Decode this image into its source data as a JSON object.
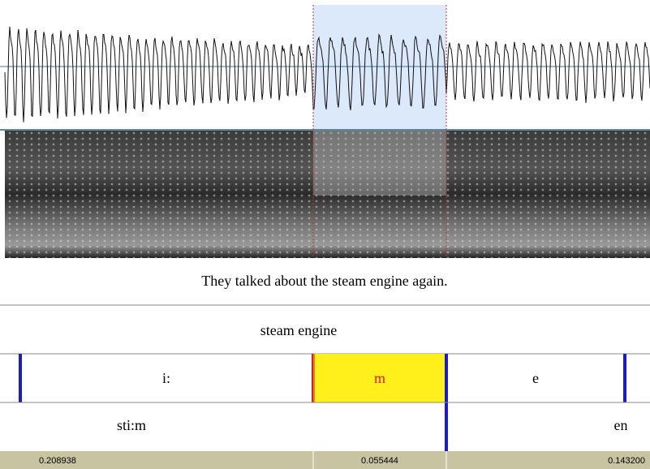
{
  "sentence_tier": {
    "text": "They talked about the steam engine again."
  },
  "word_tier": {
    "text": "steam engine"
  },
  "phone_tier": {
    "labels": [
      "i:",
      "m",
      "e"
    ]
  },
  "syllable_tier": {
    "labels": [
      "sti:m",
      "en"
    ]
  },
  "duration_bar": {
    "values": [
      "0.208938",
      "0.055444",
      "0.143200"
    ]
  }
}
